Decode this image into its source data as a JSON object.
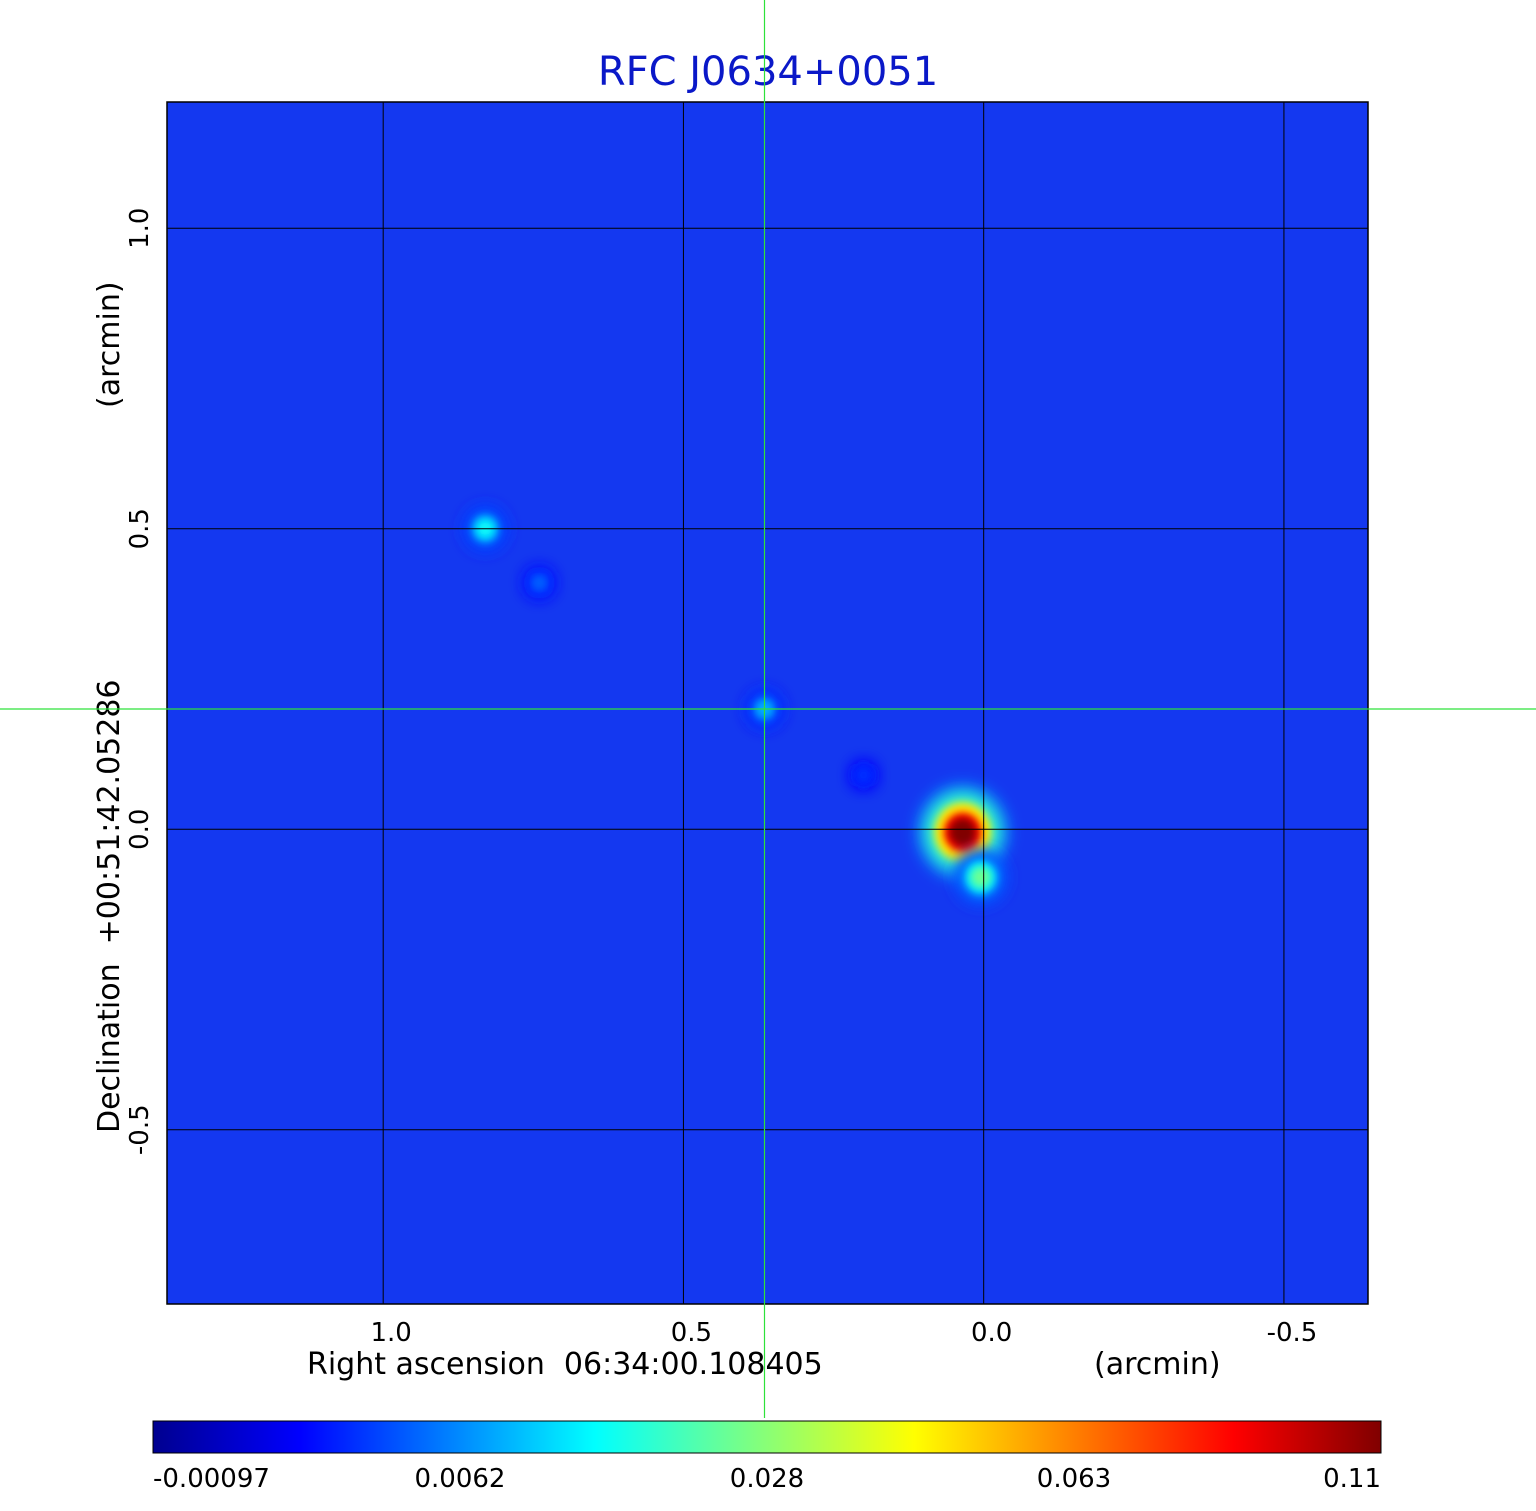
{
  "chart_data": {
    "type": "heatmap",
    "title": "RFC J0634+0051",
    "xlabel": "Right ascension  06:34:00.108405",
    "xunit": "(arcmin)",
    "ylabel": "Declination  +00:51:42.05286",
    "yunit": "(arcmin)",
    "x_ticks": [
      1.0,
      0.5,
      0.0,
      -0.5
    ],
    "x_tick_labels": [
      "1.0",
      "0.5",
      "0.0",
      "-0.5"
    ],
    "y_ticks": [
      1.0,
      0.5,
      0.0,
      -0.5
    ],
    "y_tick_labels": [
      "1.0",
      "0.5",
      "0.0",
      "-0.5"
    ],
    "xlim": [
      1.36,
      -0.64
    ],
    "ylim": [
      -0.79,
      1.21
    ],
    "grid": true,
    "colormap": "jet",
    "colorbar": {
      "position": "bottom",
      "tick_labels": [
        "-0.00097",
        "0.0062",
        "0.028",
        "0.063",
        "0.11"
      ]
    },
    "crosshair": {
      "ra_offset": 0.365,
      "dec_offset": 0.2
    },
    "components": [
      {
        "ra": 0.83,
        "dec": 0.5,
        "peak": 0.032
      },
      {
        "ra": 0.74,
        "dec": 0.41,
        "peak": 0.012
      },
      {
        "ra": 0.365,
        "dec": 0.2,
        "peak": 0.022
      },
      {
        "ra": 0.2,
        "dec": 0.09,
        "peak": 0.006
      },
      {
        "ra": 0.035,
        "dec": -0.005,
        "peak": 0.11
      },
      {
        "ra": 0.005,
        "dec": -0.08,
        "peak": 0.045
      }
    ]
  },
  "colors": {
    "title": "#0a18c8",
    "crosshair": "#2ee23a",
    "grid": "#000000",
    "background_field": "#1438f0"
  }
}
